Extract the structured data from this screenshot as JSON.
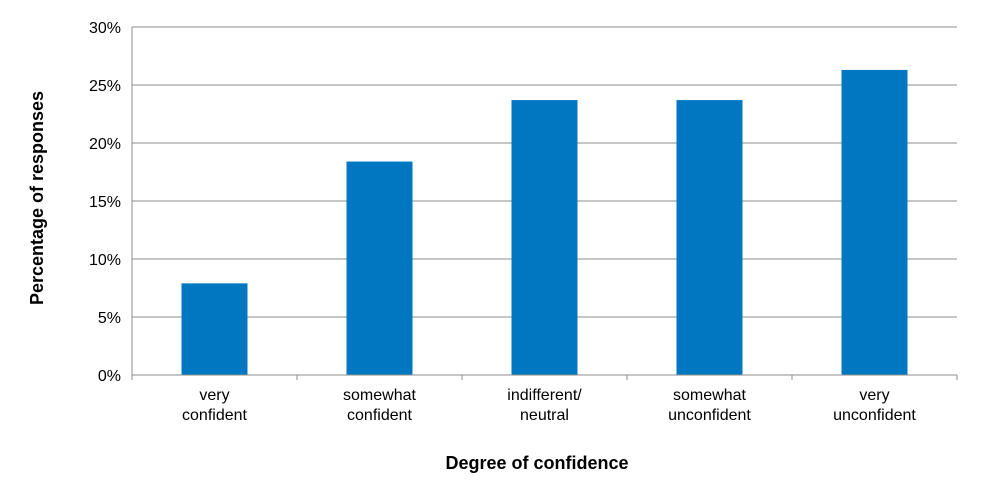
{
  "chart_data": {
    "type": "bar",
    "categories": [
      [
        "very",
        "confident"
      ],
      [
        "somewhat",
        "confident"
      ],
      [
        "indifferent/",
        "neutral"
      ],
      [
        "somewhat",
        "unconfident"
      ],
      [
        "very",
        "unconfident"
      ]
    ],
    "values": [
      7.9,
      18.4,
      23.7,
      23.7,
      26.3
    ],
    "xlabel": "Degree of confidence",
    "ylabel": "Percentage of responses",
    "ylim": [
      0,
      30
    ],
    "yticks": [
      "0%",
      "5%",
      "10%",
      "15%",
      "20%",
      "25%",
      "30%"
    ],
    "ytick_values": [
      0,
      5,
      10,
      15,
      20,
      25,
      30
    ],
    "grid": true,
    "legend": "none",
    "colors": {
      "bar": "#0077C0",
      "grid": "#8C8C8C",
      "axis": "#8C8C8C"
    }
  }
}
